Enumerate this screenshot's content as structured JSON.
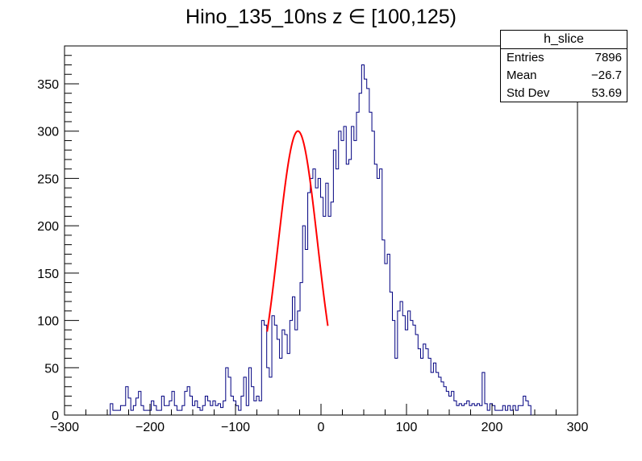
{
  "chart_data": {
    "type": "bar",
    "title": "Hino_135_10ns z  ∈ [100,125)",
    "xlabel": "",
    "ylabel": "",
    "xlim": [
      -300,
      300
    ],
    "ylim": [
      0,
      390
    ],
    "grid": false,
    "x_ticks": [
      -300,
      -200,
      -100,
      0,
      100,
      200,
      300
    ],
    "x_tick_labels": [
      "−300",
      "−200",
      "−100",
      "0",
      "100",
      "200",
      "300"
    ],
    "y_ticks": [
      0,
      50,
      100,
      150,
      200,
      250,
      300,
      350
    ],
    "y_tick_labels": [
      "0",
      "50",
      "100",
      "150",
      "200",
      "250",
      "300",
      "350"
    ],
    "histogram": {
      "name": "h_slice",
      "color": "#000080",
      "bins": [
        [
          -245,
          12
        ],
        [
          -242,
          5
        ],
        [
          -236,
          5
        ],
        [
          -233,
          10
        ],
        [
          -230,
          10
        ],
        [
          -227,
          30
        ],
        [
          -224,
          18
        ],
        [
          -221,
          5
        ],
        [
          -218,
          10
        ],
        [
          -215,
          18
        ],
        [
          -212,
          25
        ],
        [
          -209,
          10
        ],
        [
          -206,
          5
        ],
        [
          -200,
          5
        ],
        [
          -197,
          15
        ],
        [
          -194,
          10
        ],
        [
          -191,
          5
        ],
        [
          -188,
          5
        ],
        [
          -185,
          20
        ],
        [
          -182,
          10
        ],
        [
          -179,
          10
        ],
        [
          -176,
          15
        ],
        [
          -173,
          25
        ],
        [
          -170,
          10
        ],
        [
          -167,
          5
        ],
        [
          -164,
          5
        ],
        [
          -161,
          10
        ],
        [
          -158,
          25
        ],
        [
          -155,
          30
        ],
        [
          -152,
          20
        ],
        [
          -149,
          10
        ],
        [
          -146,
          15
        ],
        [
          -143,
          8
        ],
        [
          -140,
          5
        ],
        [
          -137,
          10
        ],
        [
          -134,
          20
        ],
        [
          -131,
          15
        ],
        [
          -128,
          10
        ],
        [
          -125,
          15
        ],
        [
          -122,
          10
        ],
        [
          -119,
          12
        ],
        [
          -116,
          8
        ],
        [
          -113,
          15
        ],
        [
          -110,
          50
        ],
        [
          -107,
          40
        ],
        [
          -104,
          20
        ],
        [
          -101,
          15
        ],
        [
          -98,
          10
        ],
        [
          -95,
          5
        ],
        [
          -92,
          20
        ],
        [
          -89,
          40
        ],
        [
          -86,
          10
        ],
        [
          -83,
          50
        ],
        [
          -80,
          30
        ],
        [
          -77,
          15
        ],
        [
          -74,
          20
        ],
        [
          -71,
          15
        ],
        [
          -68,
          100
        ],
        [
          -65,
          95
        ],
        [
          -62,
          50
        ],
        [
          -59,
          40
        ],
        [
          -56,
          105
        ],
        [
          -53,
          95
        ],
        [
          -50,
          80
        ],
        [
          -47,
          60
        ],
        [
          -44,
          90
        ],
        [
          -41,
          85
        ],
        [
          -38,
          65
        ],
        [
          -35,
          100
        ],
        [
          -32,
          125
        ],
        [
          -29,
          90
        ],
        [
          -26,
          110
        ],
        [
          -23,
          140
        ],
        [
          -20,
          200
        ],
        [
          -17,
          175
        ],
        [
          -14,
          235
        ],
        [
          -11,
          250
        ],
        [
          -8,
          260
        ],
        [
          -5,
          240
        ],
        [
          -2,
          250
        ],
        [
          1,
          230
        ],
        [
          4,
          210
        ],
        [
          7,
          245
        ],
        [
          10,
          210
        ],
        [
          13,
          225
        ],
        [
          16,
          280
        ],
        [
          19,
          260
        ],
        [
          22,
          300
        ],
        [
          25,
          290
        ],
        [
          28,
          305
        ],
        [
          31,
          265
        ],
        [
          34,
          270
        ],
        [
          37,
          305
        ],
        [
          40,
          290
        ],
        [
          43,
          320
        ],
        [
          46,
          340
        ],
        [
          49,
          370
        ],
        [
          52,
          355
        ],
        [
          55,
          345
        ],
        [
          58,
          320
        ],
        [
          61,
          300
        ],
        [
          64,
          265
        ],
        [
          67,
          250
        ],
        [
          70,
          260
        ],
        [
          73,
          185
        ],
        [
          76,
          160
        ],
        [
          79,
          170
        ],
        [
          82,
          130
        ],
        [
          85,
          100
        ],
        [
          88,
          60
        ],
        [
          91,
          110
        ],
        [
          94,
          120
        ],
        [
          97,
          105
        ],
        [
          100,
          90
        ],
        [
          103,
          110
        ],
        [
          106,
          100
        ],
        [
          109,
          95
        ],
        [
          112,
          85
        ],
        [
          115,
          70
        ],
        [
          118,
          60
        ],
        [
          121,
          75
        ],
        [
          124,
          70
        ],
        [
          127,
          60
        ],
        [
          130,
          45
        ],
        [
          133,
          55
        ],
        [
          136,
          45
        ],
        [
          139,
          40
        ],
        [
          142,
          35
        ],
        [
          145,
          30
        ],
        [
          148,
          25
        ],
        [
          151,
          20
        ],
        [
          154,
          25
        ],
        [
          157,
          15
        ],
        [
          160,
          10
        ],
        [
          163,
          12
        ],
        [
          166,
          10
        ],
        [
          169,
          12
        ],
        [
          172,
          15
        ],
        [
          175,
          10
        ],
        [
          178,
          12
        ],
        [
          181,
          10
        ],
        [
          184,
          12
        ],
        [
          187,
          10
        ],
        [
          190,
          45
        ],
        [
          193,
          12
        ],
        [
          196,
          5
        ],
        [
          199,
          12
        ],
        [
          202,
          10
        ],
        [
          205,
          5
        ],
        [
          208,
          5
        ],
        [
          211,
          5
        ],
        [
          214,
          10
        ],
        [
          217,
          5
        ],
        [
          220,
          10
        ],
        [
          223,
          5
        ],
        [
          226,
          10
        ],
        [
          229,
          5
        ],
        [
          232,
          10
        ],
        [
          235,
          10
        ],
        [
          238,
          20
        ],
        [
          241,
          15
        ],
        [
          244,
          10
        ]
      ]
    },
    "fit": {
      "name": "gaussian",
      "color": "#ff0000",
      "constant": 300,
      "mean": -27,
      "sigma": 23,
      "range": [
        -63,
        8
      ]
    },
    "stats": {
      "title": "h_slice",
      "rows": [
        {
          "label": "Entries",
          "value": "7896"
        },
        {
          "label": "Mean",
          "value": "−26.7"
        },
        {
          "label": "Std Dev",
          "value": "53.69"
        }
      ]
    }
  }
}
